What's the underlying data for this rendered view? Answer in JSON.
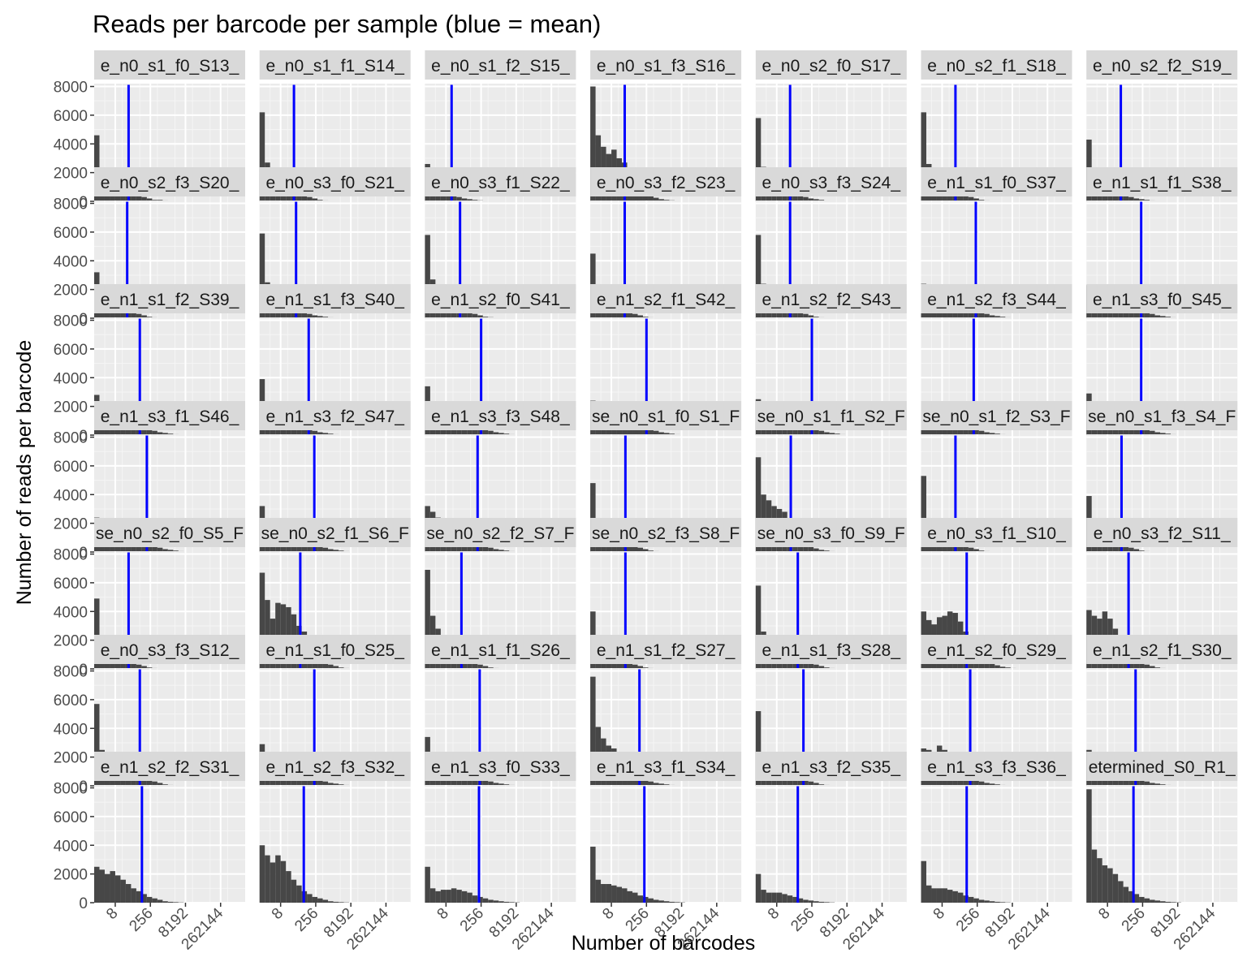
{
  "chart_data": {
    "type": "bar",
    "title": "Reads per barcode per sample (blue = mean)",
    "xlabel": "Number of barcodes",
    "ylabel": "Number of reads per barcode",
    "x_scale": "log2",
    "x_tick_labels": [
      "8",
      "256",
      "8192",
      "262144"
    ],
    "x_tick_values": [
      8,
      256,
      8192,
      262144
    ],
    "y_tick_labels": [
      "0",
      "2000",
      "4000",
      "6000",
      "8000"
    ],
    "y_tick_values": [
      0,
      2000,
      4000,
      6000,
      8000
    ],
    "ylim": [
      0,
      8200
    ],
    "xlim_log2": [
      0,
      21.5
    ],
    "bin_width_log2": 0.75,
    "mean_line_color": "#0000ff",
    "bar_color": "#474747",
    "panel_background": "#ebebeb",
    "strip_background": "#d9d9d9",
    "grid": true,
    "facets": [
      {
        "label": "e_n0_s1_f0_S13_",
        "mean_log2": 4.9,
        "values": [
          4600,
          2000,
          1300,
          1200,
          1100,
          900,
          800,
          600,
          500,
          300,
          200,
          100,
          100,
          60,
          40,
          30,
          20
        ]
      },
      {
        "label": "e_n0_s1_f1_S14_",
        "mean_log2": 4.9,
        "values": [
          6200,
          2700,
          1600,
          1500,
          1300,
          1000,
          800,
          600,
          400,
          300,
          200,
          100,
          60,
          40,
          40,
          30,
          20,
          20
        ]
      },
      {
        "label": "e_n0_s1_f2_S15_",
        "mean_log2": 3.8,
        "values": [
          2600,
          1100,
          700,
          600,
          500,
          400,
          300,
          200,
          150,
          100,
          70,
          50,
          30,
          20
        ]
      },
      {
        "label": "e_n0_s1_f3_S16_",
        "mean_log2": 4.9,
        "values": [
          8000,
          4600,
          3800,
          3300,
          3600,
          3000,
          2700,
          1900,
          1300,
          900,
          600,
          400,
          250,
          150,
          100,
          70,
          50,
          30
        ]
      },
      {
        "label": "e_n0_s2_f0_S17_",
        "mean_log2": 4.9,
        "values": [
          5800,
          2400,
          1800,
          1600,
          1500,
          1200,
          1000,
          700,
          500,
          300,
          200,
          150,
          100,
          50,
          30,
          20
        ]
      },
      {
        "label": "e_n0_s2_f1_S18_",
        "mean_log2": 4.9,
        "values": [
          6200,
          2600,
          2000,
          1800,
          1600,
          1300,
          1000,
          700,
          500,
          300,
          200,
          100,
          60,
          40,
          20
        ]
      },
      {
        "label": "e_n0_s2_f2_S19_",
        "mean_log2": 4.9,
        "values": [
          4300,
          1800,
          1300,
          1200,
          1000,
          800,
          700,
          500,
          300,
          200,
          150,
          100,
          60,
          40,
          20
        ]
      },
      {
        "label": "e_n0_s2_f3_S20_",
        "mean_log2": 4.7,
        "values": [
          3200,
          1500,
          1000,
          900,
          1000,
          800,
          600,
          400,
          300,
          200,
          100,
          60,
          40,
          20
        ]
      },
      {
        "label": "e_n0_s3_f0_S21_",
        "mean_log2": 5.2,
        "values": [
          5900,
          2500,
          2100,
          1800,
          1700,
          1400,
          1100,
          800,
          500,
          300,
          200,
          150,
          100,
          60,
          40
        ]
      },
      {
        "label": "e_n0_s3_f1_S22_",
        "mean_log2": 5.0,
        "values": [
          5800,
          2700,
          2000,
          1800,
          1500,
          1200,
          1000,
          700,
          500,
          300,
          200,
          100,
          70,
          40
        ]
      },
      {
        "label": "e_n0_s3_f2_S23_",
        "mean_log2": 4.9,
        "values": [
          4500,
          1800,
          1300,
          1200,
          1200,
          900,
          700,
          500,
          300,
          200,
          100,
          60,
          40,
          20
        ]
      },
      {
        "label": "e_n0_s3_f3_S24_",
        "mean_log2": 4.9,
        "values": [
          5800,
          2400,
          1600,
          1500,
          1300,
          1000,
          800,
          600,
          400,
          300,
          200,
          100,
          60,
          40
        ]
      },
      {
        "label": "e_n1_s1_f0_S37_",
        "mean_log2": 7.8,
        "values": [
          2400,
          1000,
          800,
          900,
          900,
          1000,
          1000,
          900,
          800,
          600,
          500,
          400,
          300,
          200,
          150,
          100,
          60,
          40,
          20
        ]
      },
      {
        "label": "e_n1_s1_f1_S38_",
        "mean_log2": 7.8,
        "values": [
          2300,
          1000,
          800,
          900,
          900,
          1000,
          1000,
          900,
          800,
          600,
          500,
          400,
          300,
          200,
          150,
          100,
          60,
          40,
          20
        ]
      },
      {
        "label": "e_n1_s1_f2_S39_",
        "mean_log2": 6.5,
        "values": [
          2800,
          1100,
          800,
          900,
          1000,
          1000,
          900,
          800,
          600,
          500,
          400,
          300,
          200,
          150,
          100,
          60,
          40,
          20
        ]
      },
      {
        "label": "e_n1_s1_f3_S40_",
        "mean_log2": 7.0,
        "values": [
          3900,
          1800,
          1400,
          1300,
          1200,
          1000,
          900,
          700,
          600,
          400,
          300,
          200,
          150,
          100,
          60,
          40,
          20
        ]
      },
      {
        "label": "e_n1_s2_f0_S41_",
        "mean_log2": 8.0,
        "values": [
          3400,
          1200,
          900,
          900,
          1000,
          1000,
          1000,
          900,
          800,
          600,
          500,
          400,
          300,
          200,
          150,
          100,
          60,
          40,
          20
        ]
      },
      {
        "label": "e_n1_s2_f1_S42_",
        "mean_log2": 8.0,
        "values": [
          2400,
          1000,
          900,
          900,
          1000,
          1000,
          1100,
          1000,
          900,
          700,
          500,
          400,
          300,
          200,
          150,
          100,
          60,
          40,
          20
        ]
      },
      {
        "label": "e_n1_s2_f2_S43_",
        "mean_log2": 8.0,
        "values": [
          2500,
          1000,
          900,
          900,
          1000,
          1100,
          1000,
          900,
          800,
          600,
          500,
          400,
          300,
          200,
          150,
          100,
          60,
          40,
          20
        ]
      },
      {
        "label": "e_n1_s2_f3_S44_",
        "mean_log2": 7.5,
        "values": [
          2000,
          2000,
          1700,
          2000,
          1800,
          1600,
          1300,
          1100,
          800,
          600,
          400,
          300,
          200,
          150,
          100,
          60,
          40,
          20
        ]
      },
      {
        "label": "e_n1_s3_f0_S45_",
        "mean_log2": 7.8,
        "values": [
          2900,
          1100,
          900,
          900,
          1000,
          1000,
          1000,
          900,
          800,
          600,
          500,
          400,
          300,
          200,
          150,
          100,
          60,
          40,
          20
        ]
      },
      {
        "label": "e_n1_s3_f1_S46_",
        "mean_log2": 7.5,
        "values": [
          2400,
          900,
          800,
          900,
          900,
          1000,
          900,
          800,
          700,
          600,
          500,
          400,
          300,
          200,
          150,
          100,
          60,
          40,
          20
        ]
      },
      {
        "label": "e_n1_s3_f2_S47_",
        "mean_log2": 7.8,
        "values": [
          3200,
          1100,
          900,
          1000,
          1100,
          1100,
          1000,
          900,
          800,
          700,
          500,
          400,
          300,
          200,
          150,
          100,
          60,
          40,
          20
        ]
      },
      {
        "label": "e_n1_s3_f3_S48_",
        "mean_log2": 7.5,
        "values": [
          3200,
          2800,
          2400,
          2100,
          1800,
          1400,
          1200,
          900,
          800,
          700,
          500,
          400,
          300,
          200,
          150,
          100,
          60,
          40,
          20
        ]
      },
      {
        "label": "se_n0_s1_f0_S1_F",
        "mean_log2": 5.0,
        "values": [
          4800,
          2200,
          1700,
          1400,
          1300,
          1100,
          900,
          700,
          500,
          300,
          200,
          100,
          60,
          40,
          20
        ]
      },
      {
        "label": "se_n0_s1_f1_S2_F",
        "mean_log2": 5.0,
        "values": [
          6600,
          4000,
          3600,
          3200,
          3000,
          2800,
          1800,
          1300,
          900,
          600,
          400,
          250,
          150,
          100,
          60,
          40
        ]
      },
      {
        "label": "se_n0_s1_f2_S3_F",
        "mean_log2": 4.9,
        "values": [
          5300,
          2100,
          1700,
          1500,
          1300,
          1000,
          800,
          600,
          400,
          300,
          200,
          100,
          60,
          40,
          20
        ]
      },
      {
        "label": "se_n0_s1_f3_S4_F",
        "mean_log2": 5.0,
        "values": [
          3900,
          1700,
          1200,
          1100,
          1000,
          800,
          600,
          500,
          300,
          200,
          100,
          60,
          40,
          20
        ]
      },
      {
        "label": "se_n0_s2_f0_S5_F",
        "mean_log2": 4.9,
        "values": [
          4900,
          1800,
          1200,
          1500,
          1100,
          900,
          700,
          500,
          300,
          200,
          100,
          60,
          40,
          20
        ]
      },
      {
        "label": "se_n0_s2_f1_S6_F",
        "mean_log2": 5.8,
        "values": [
          6700,
          4800,
          3500,
          4600,
          4500,
          4300,
          3800,
          3000,
          2600,
          1800,
          1200,
          800,
          500,
          300,
          200,
          100,
          60,
          40,
          20
        ]
      },
      {
        "label": "se_n0_s2_f2_S7_F",
        "mean_log2": 5.2,
        "values": [
          6900,
          3700,
          2800,
          2300,
          2000,
          1700,
          1300,
          900,
          600,
          400,
          300,
          200,
          100,
          60,
          40,
          20
        ]
      },
      {
        "label": "se_n0_s2_f3_S8_F",
        "mean_log2": 5.0,
        "values": [
          4000,
          1600,
          1100,
          1100,
          1000,
          900,
          700,
          500,
          300,
          200,
          100,
          60,
          40,
          20
        ]
      },
      {
        "label": "se_n0_s3_f0_S9_F",
        "mean_log2": 6.0,
        "values": [
          5800,
          2600,
          2000,
          1800,
          1700,
          1500,
          1300,
          1000,
          800,
          600,
          400,
          300,
          200,
          100,
          60,
          40,
          20
        ]
      },
      {
        "label": "e_n0_s3_f1_S10_",
        "mean_log2": 6.5,
        "values": [
          4000,
          3400,
          3100,
          3600,
          3700,
          4000,
          3900,
          3300,
          2600,
          1900,
          1300,
          900,
          600,
          400,
          250,
          150,
          100,
          60,
          40
        ]
      },
      {
        "label": "e_n0_s3_f2_S11_",
        "mean_log2": 6.0,
        "values": [
          4100,
          3700,
          3500,
          4000,
          3500,
          2800,
          2200,
          1500,
          1000,
          700,
          500,
          300,
          200,
          100,
          60,
          40,
          20
        ]
      },
      {
        "label": "e_n0_s3_f3_S12_",
        "mean_log2": 6.5,
        "values": [
          5700,
          2500,
          1900,
          1800,
          1600,
          1400,
          1100,
          900,
          700,
          500,
          400,
          300,
          200,
          100,
          60,
          40,
          20
        ]
      },
      {
        "label": "e_n1_s1_f0_S25_",
        "mean_log2": 7.8,
        "values": [
          2900,
          1100,
          800,
          900,
          1000,
          1000,
          1000,
          900,
          800,
          700,
          500,
          400,
          300,
          200,
          150,
          100,
          60,
          40,
          20
        ]
      },
      {
        "label": "e_n1_s1_f1_S26_",
        "mean_log2": 7.8,
        "values": [
          3400,
          1300,
          1000,
          1000,
          1100,
          1000,
          1000,
          900,
          700,
          600,
          500,
          400,
          300,
          200,
          150,
          100,
          60,
          40,
          20
        ]
      },
      {
        "label": "e_n1_s1_f2_S27_",
        "mean_log2": 7.0,
        "values": [
          7600,
          4100,
          3300,
          2800,
          2600,
          2300,
          1900,
          1400,
          1000,
          700,
          500,
          300,
          200,
          150,
          100,
          60,
          40,
          20
        ]
      },
      {
        "label": "e_n1_s1_f3_S28_",
        "mean_log2": 6.8,
        "values": [
          5200,
          2300,
          1700,
          1500,
          1300,
          1100,
          900,
          700,
          500,
          400,
          300,
          200,
          100,
          60,
          40,
          20
        ]
      },
      {
        "label": "e_n1_s2_f0_S29_",
        "mean_log2": 7.0,
        "values": [
          2600,
          2500,
          2200,
          2800,
          2500,
          2000,
          1500,
          1100,
          800,
          600,
          400,
          300,
          200,
          150,
          100,
          60,
          40,
          20
        ]
      },
      {
        "label": "e_n1_s2_f1_S30_",
        "mean_log2": 7.0,
        "values": [
          2500,
          1000,
          800,
          900,
          900,
          1000,
          900,
          800,
          700,
          500,
          400,
          300,
          200,
          150,
          100,
          60,
          40,
          20
        ]
      },
      {
        "label": "e_n1_s2_f2_S31_",
        "mean_log2": 6.8,
        "values": [
          2500,
          2300,
          2000,
          2200,
          1900,
          1600,
          1300,
          1000,
          800,
          600,
          400,
          300,
          200,
          100,
          60,
          40,
          20
        ]
      },
      {
        "label": "e_n1_s2_f3_S32_",
        "mean_log2": 6.3,
        "values": [
          4000,
          3300,
          2800,
          3300,
          2900,
          2200,
          1600,
          1200,
          800,
          600,
          400,
          300,
          200,
          100,
          60,
          40,
          20
        ]
      },
      {
        "label": "e_n1_s3_f0_S33_",
        "mean_log2": 7.7,
        "values": [
          2500,
          1000,
          800,
          900,
          900,
          1000,
          900,
          800,
          700,
          500,
          400,
          300,
          200,
          150,
          100,
          60,
          40,
          20
        ]
      },
      {
        "label": "e_n1_s3_f1_S34_",
        "mean_log2": 7.7,
        "values": [
          3900,
          1600,
          1300,
          1300,
          1200,
          1100,
          1000,
          800,
          700,
          500,
          400,
          300,
          200,
          150,
          100,
          60,
          40,
          20
        ]
      },
      {
        "label": "e_n1_s3_f2_S35_",
        "mean_log2": 6.0,
        "values": [
          2000,
          900,
          700,
          700,
          700,
          600,
          500,
          400,
          300,
          200,
          150,
          100,
          60,
          40,
          20
        ]
      },
      {
        "label": "e_n1_s3_f3_S36_",
        "mean_log2": 6.5,
        "values": [
          2900,
          1200,
          1000,
          1000,
          1000,
          900,
          800,
          700,
          500,
          400,
          300,
          200,
          150,
          100,
          60,
          40,
          20
        ]
      },
      {
        "label": "etermined_S0_R1_",
        "mean_log2": 6.7,
        "values": [
          7900,
          3700,
          3100,
          2600,
          2400,
          2000,
          1500,
          1100,
          800,
          600,
          400,
          300,
          200,
          150,
          100,
          60,
          40,
          20
        ]
      }
    ]
  }
}
